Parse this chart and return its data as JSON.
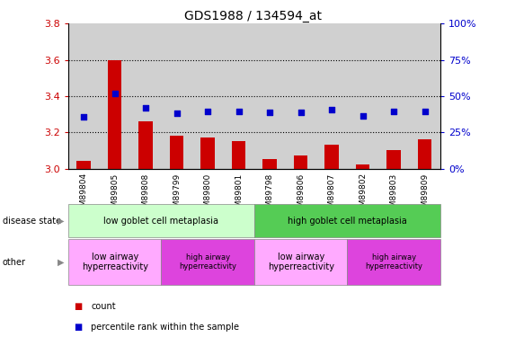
{
  "title": "GDS1988 / 134594_at",
  "samples": [
    "GSM89804",
    "GSM89805",
    "GSM89808",
    "GSM89799",
    "GSM89800",
    "GSM89801",
    "GSM89798",
    "GSM89806",
    "GSM89807",
    "GSM89802",
    "GSM89803",
    "GSM89809"
  ],
  "bar_values": [
    3.04,
    3.6,
    3.26,
    3.18,
    3.17,
    3.15,
    3.05,
    3.07,
    3.13,
    3.02,
    3.1,
    3.16
  ],
  "scatter_values": [
    3.285,
    3.415,
    3.335,
    3.305,
    3.315,
    3.315,
    3.31,
    3.31,
    3.325,
    3.29,
    3.315,
    3.315
  ],
  "bar_color": "#cc0000",
  "scatter_color": "#0000cc",
  "ylim_left": [
    3.0,
    3.8
  ],
  "ylim_right": [
    0,
    100
  ],
  "yticks_left": [
    3.0,
    3.2,
    3.4,
    3.6,
    3.8
  ],
  "yticks_right": [
    0,
    25,
    50,
    75,
    100
  ],
  "ytick_labels_right": [
    "0%",
    "25%",
    "50%",
    "75%",
    "100%"
  ],
  "disease_state_groups": [
    {
      "label": "low goblet cell metaplasia",
      "start": 0,
      "end": 5,
      "color": "#ccffcc"
    },
    {
      "label": "high goblet cell metaplasia",
      "start": 6,
      "end": 11,
      "color": "#55cc55"
    }
  ],
  "other_groups": [
    {
      "label": "low airway\nhyperreactivity",
      "start": 0,
      "end": 2,
      "color": "#ffaaff"
    },
    {
      "label": "high airway\nhyperreactivity",
      "start": 3,
      "end": 5,
      "color": "#dd44dd"
    },
    {
      "label": "low airway\nhyperreactivity",
      "start": 6,
      "end": 8,
      "color": "#ffaaff"
    },
    {
      "label": "high airway\nhyperreactivity",
      "start": 9,
      "end": 11,
      "color": "#dd44dd"
    }
  ],
  "disease_state_label": "disease state",
  "other_label": "other",
  "legend_count_label": "count",
  "legend_pct_label": "percentile rank within the sample",
  "background_color": "#ffffff",
  "tick_label_color_left": "#cc0000",
  "tick_label_color_right": "#0000cc",
  "col_bg_even": "#dddddd",
  "col_bg_odd": "#ffffff"
}
